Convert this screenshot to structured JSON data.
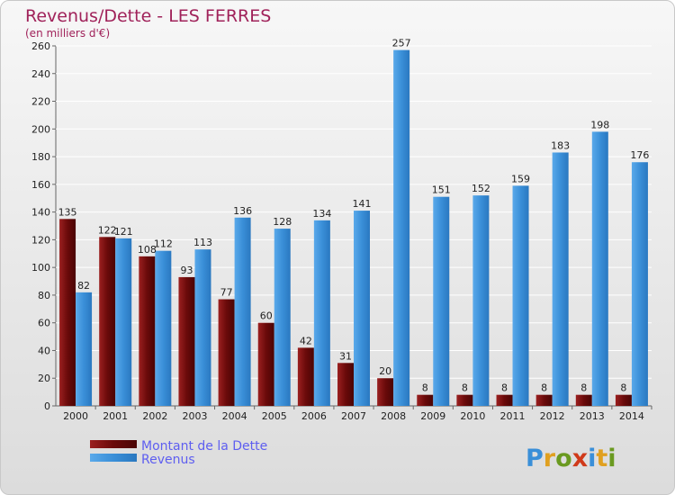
{
  "chart_data": {
    "type": "bar",
    "title": "Revenus/Dette - LES FERRES",
    "subtitle": "(en milliers d'€)",
    "categories": [
      "2000",
      "2001",
      "2002",
      "2003",
      "2004",
      "2005",
      "2006",
      "2007",
      "2008",
      "2009",
      "2010",
      "2011",
      "2012",
      "2013",
      "2014"
    ],
    "series": [
      {
        "name": "Montant de la Dette",
        "color": "#7a1010",
        "values": [
          135,
          122,
          108,
          93,
          77,
          60,
          42,
          31,
          20,
          8,
          8,
          8,
          8,
          8,
          8
        ]
      },
      {
        "name": "Revenus",
        "color": "#3a8fd8",
        "values": [
          82,
          121,
          112,
          113,
          136,
          128,
          134,
          141,
          257,
          151,
          152,
          159,
          183,
          198,
          176
        ]
      }
    ],
    "ylim": [
      0,
      260
    ],
    "yticks": [
      0,
      20,
      40,
      60,
      80,
      100,
      120,
      140,
      160,
      180,
      200,
      220,
      240,
      260
    ],
    "grid": true,
    "legend": "bottom-left"
  },
  "logo": {
    "text": "Proxiti"
  }
}
